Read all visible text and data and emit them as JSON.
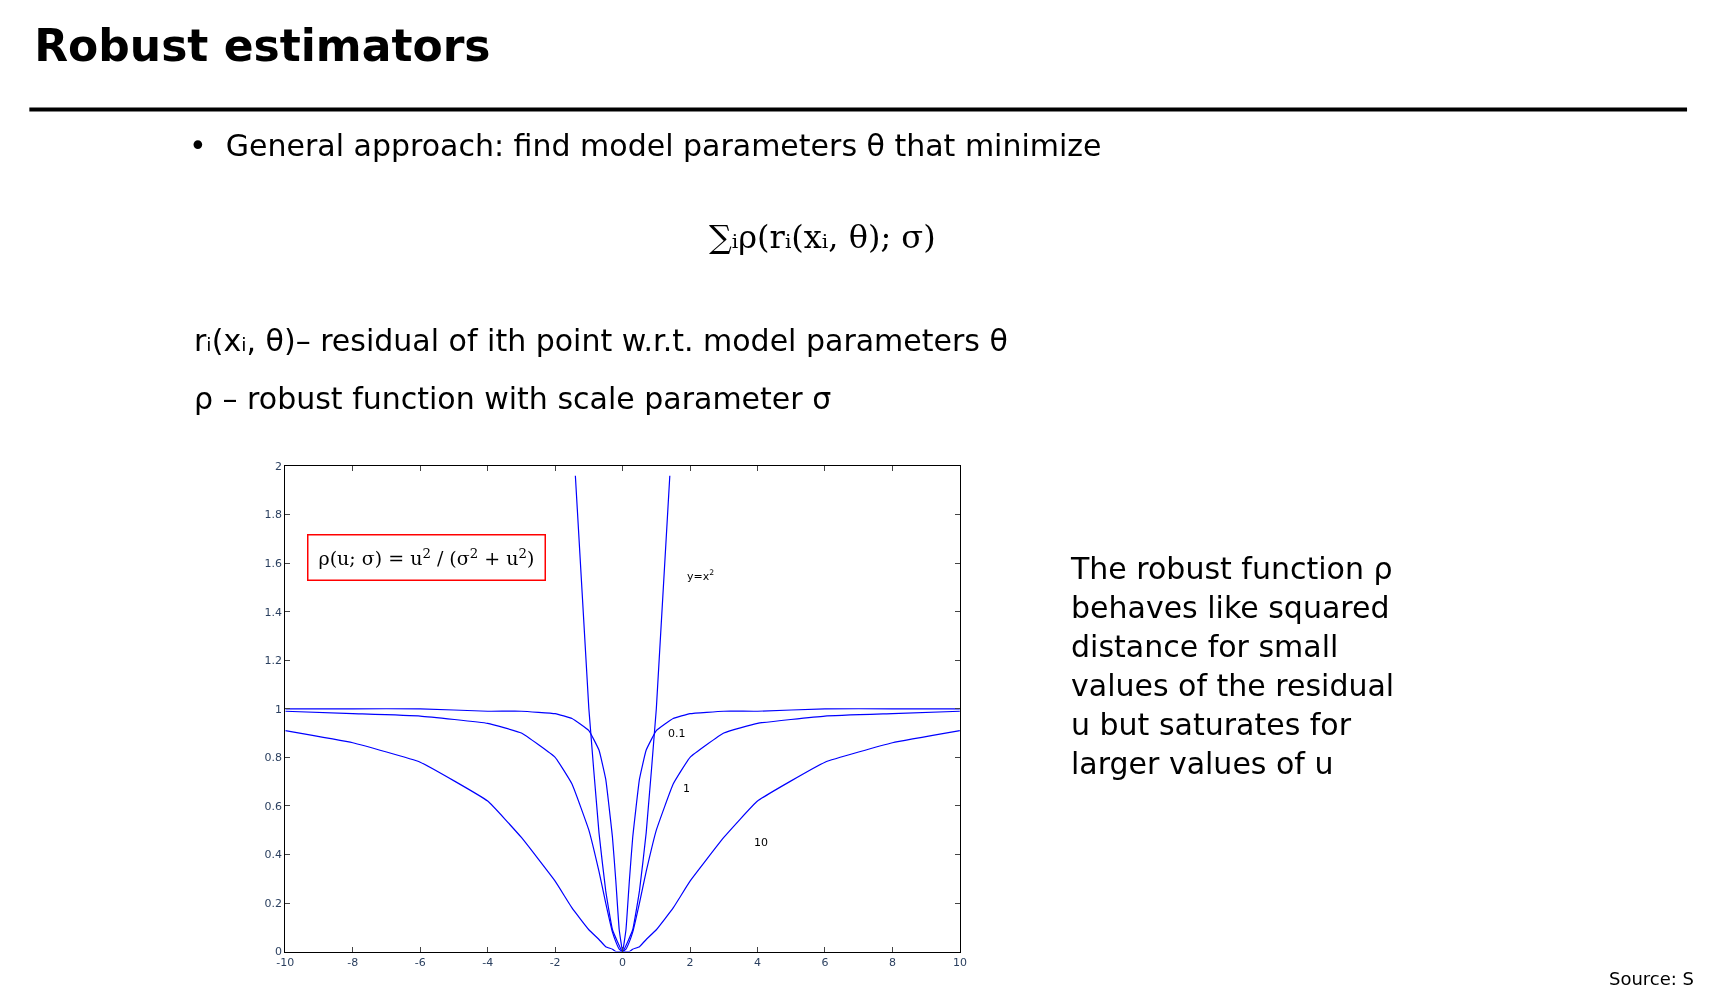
{
  "chart_data": {
    "type": "line",
    "title": "Robust estimators",
    "annotations": [
      "•  General approach: find model parameters θ that minimize",
      "∑ᵢρ(rᵢ(xᵢ, θ); σ)",
      "rᵢ(xᵢ, θ)– residual of ith point w.r.t. model parameters θ",
      "ρ – robust function with scale parameter σ",
      "ρ(u; σ) = u$^{2}$ / (σ$^{2}$ + u$^{2}$)",
      "The robust function ρ\nbehaves like squared\ndistance for small\nvalues of the residual\nu but saturates for\nlarger values of u",
      "Source: S"
    ],
    "x": [
      -10,
      -8,
      -6,
      -4,
      -3,
      -2,
      -1.5,
      -1,
      -0.7,
      -0.5,
      -0.3,
      -0.2,
      -0.1,
      0,
      0.1,
      0.2,
      0.3,
      0.5,
      0.7,
      1,
      1.5,
      2,
      3,
      4,
      6,
      8,
      10
    ],
    "series": [
      {
        "name": "y=x$^{2}$",
        "color": "#0000ff",
        "x": [
          -1.4,
          -1,
          -0.7,
          -0.5,
          -0.3,
          0,
          0.3,
          0.5,
          0.7,
          1,
          1.4
        ],
        "values": [
          1.96,
          1,
          0.49,
          0.25,
          0.09,
          0,
          0.09,
          0.25,
          0.49,
          1,
          1.96
        ]
      },
      {
        "name": "0.1",
        "color": "#0000ff",
        "values": [
          1,
          1,
          1,
          0.99,
          0.99,
          0.98,
          0.96,
          0.91,
          0.83,
          0.71,
          0.47,
          0.29,
          0.09,
          0,
          0.09,
          0.29,
          0.47,
          0.71,
          0.83,
          0.91,
          0.96,
          0.98,
          0.99,
          0.99,
          1,
          1,
          1
        ]
      },
      {
        "name": "1",
        "color": "#0000ff",
        "values": [
          0.99,
          0.98,
          0.97,
          0.94,
          0.9,
          0.8,
          0.69,
          0.5,
          0.33,
          0.2,
          0.08,
          0.04,
          0.01,
          0,
          0.01,
          0.04,
          0.08,
          0.2,
          0.33,
          0.5,
          0.69,
          0.8,
          0.9,
          0.94,
          0.97,
          0.98,
          0.99
        ]
      },
      {
        "name": "10",
        "color": "#0000ff",
        "values": [
          0.91,
          0.86,
          0.78,
          0.62,
          0.47,
          0.29,
          0.18,
          0.09,
          0.05,
          0.02,
          0.01,
          0,
          0,
          0,
          0,
          0,
          0.01,
          0.02,
          0.05,
          0.09,
          0.18,
          0.29,
          0.47,
          0.62,
          0.78,
          0.86,
          0.91
        ]
      }
    ],
    "xlim": [
      -10,
      10
    ],
    "xticks": [
      -10,
      -8,
      -6,
      -4,
      -2,
      0,
      2,
      4,
      6,
      8,
      10
    ],
    "ylim": [
      0,
      2
    ],
    "yticks": [
      0,
      0.2,
      0.4,
      0.6,
      0.8,
      1,
      1.2,
      1.4,
      1.6,
      1.8,
      2
    ],
    "grid": false,
    "legend": false,
    "marker": "none",
    "line_style": "solid"
  }
}
